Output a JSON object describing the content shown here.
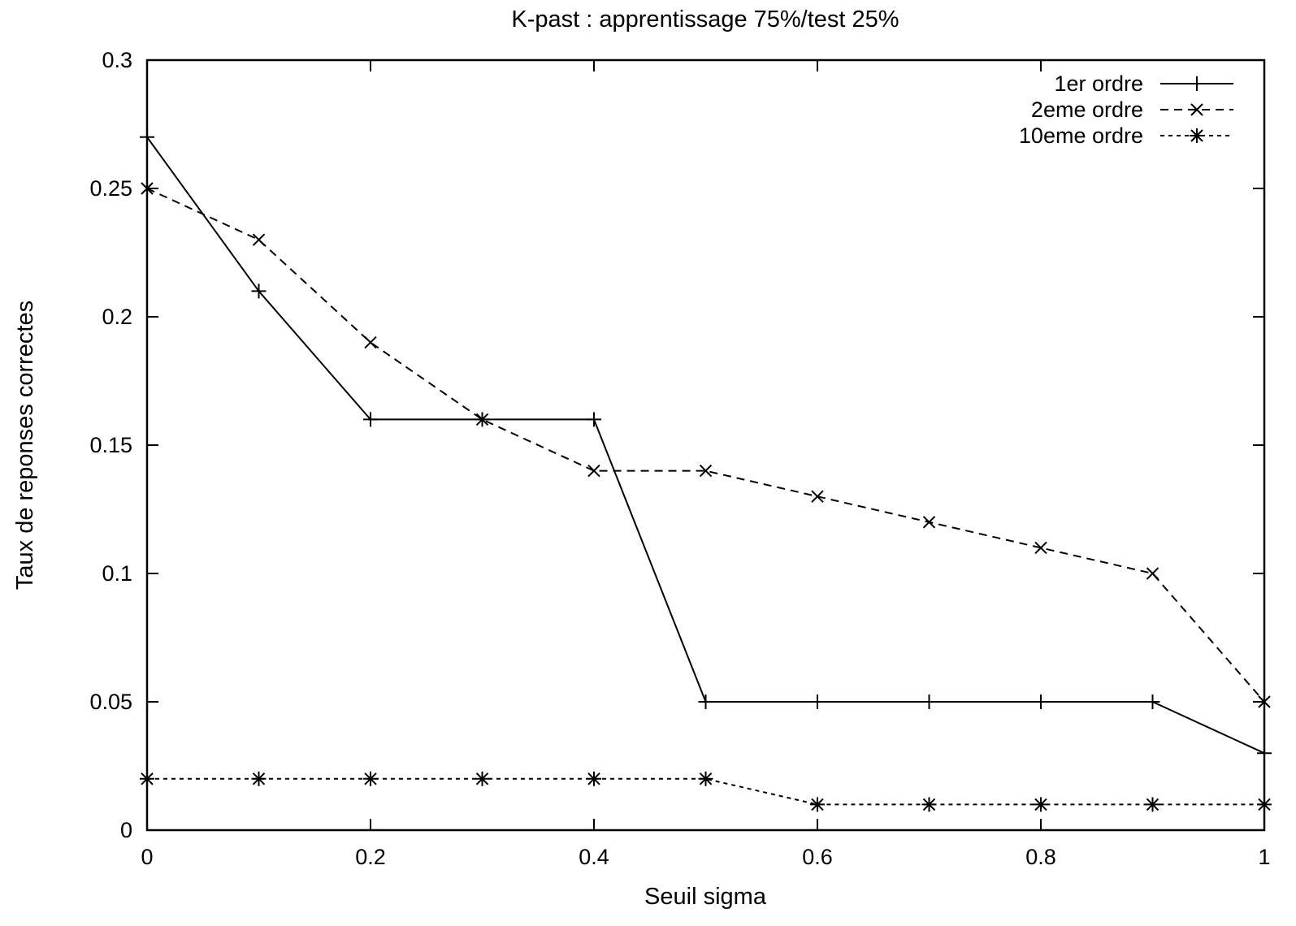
{
  "chart_data": {
    "type": "line",
    "title": "K-past : apprentissage 75%/test 25%",
    "xlabel": "Seuil sigma",
    "ylabel": "Taux de reponses correctes",
    "xlim": [
      0,
      1
    ],
    "ylim": [
      0,
      0.3
    ],
    "xticks": [
      0,
      0.2,
      0.4,
      0.6,
      0.8,
      1
    ],
    "xtick_labels": [
      "0",
      "0.2",
      "0.4",
      "0.6",
      "0.8",
      "1"
    ],
    "yticks": [
      0,
      0.05,
      0.1,
      0.15,
      0.2,
      0.25,
      0.3
    ],
    "ytick_labels": [
      "0",
      "0.05",
      "0.1",
      "0.15",
      "0.2",
      "0.25",
      "0.3"
    ],
    "grid": false,
    "legend_position": "top-right",
    "x": [
      0,
      0.1,
      0.2,
      0.3,
      0.4,
      0.5,
      0.6,
      0.7,
      0.8,
      0.9,
      1.0
    ],
    "series": [
      {
        "name": "1er ordre",
        "marker": "plus",
        "line_style": "solid",
        "values": [
          0.27,
          0.21,
          0.16,
          0.16,
          0.16,
          0.05,
          0.05,
          0.05,
          0.05,
          0.05,
          0.03
        ]
      },
      {
        "name": "2eme ordre",
        "marker": "cross",
        "line_style": "dashed",
        "values": [
          0.25,
          0.23,
          0.19,
          0.16,
          0.14,
          0.14,
          0.13,
          0.12,
          0.11,
          0.1,
          0.05
        ]
      },
      {
        "name": "10eme ordre",
        "marker": "star",
        "line_style": "dotted",
        "values": [
          0.02,
          0.02,
          0.02,
          0.02,
          0.02,
          0.02,
          0.01,
          0.01,
          0.01,
          0.01,
          0.01
        ]
      }
    ]
  }
}
